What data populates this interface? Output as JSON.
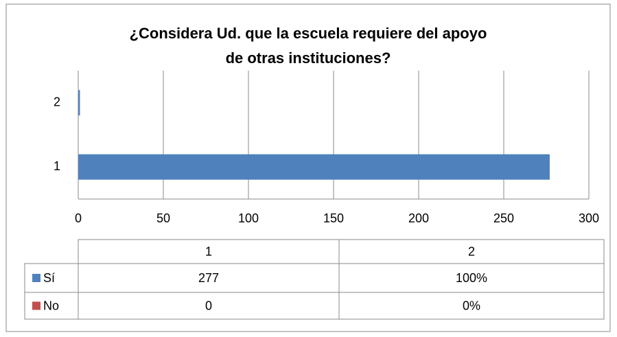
{
  "chart_data": {
    "type": "bar",
    "orientation": "horizontal",
    "title": "¿Considera Ud. que la escuela requiere del apoyo de otras instituciones?",
    "categories": [
      "1",
      "2"
    ],
    "series": [
      {
        "name": "Sí",
        "color": "#4f81bd",
        "values": [
          277,
          1
        ],
        "value_labels": [
          "277",
          "100%"
        ]
      },
      {
        "name": "No",
        "color": "#c0504d",
        "values": [
          0,
          0
        ],
        "value_labels": [
          "0",
          "0%"
        ]
      }
    ],
    "xlim": [
      0,
      300
    ],
    "xticks": [
      0,
      50,
      100,
      150,
      200,
      250,
      300
    ],
    "grid": true,
    "data_table": true
  }
}
